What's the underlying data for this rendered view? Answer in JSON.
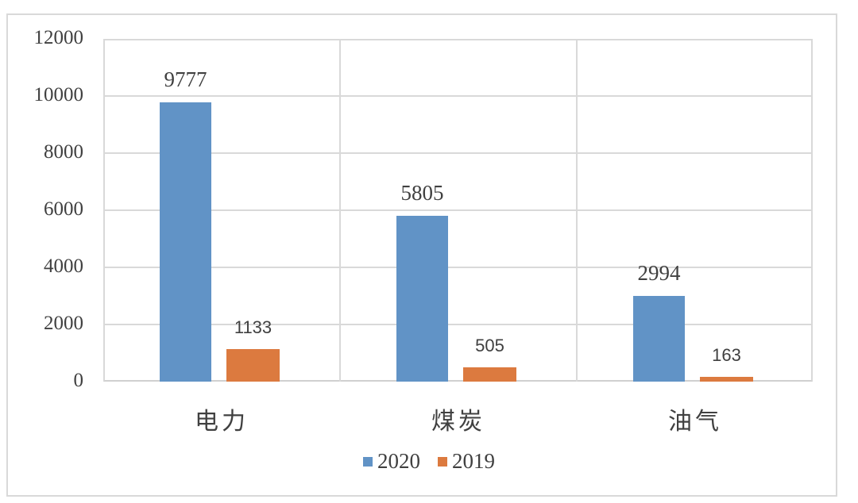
{
  "chart_data": {
    "type": "bar",
    "title": "",
    "xlabel": "",
    "ylabel": "",
    "categories": [
      "电力",
      "煤炭",
      "油气"
    ],
    "series": [
      {
        "name": "2020",
        "values": [
          9777,
          5805,
          2994
        ],
        "color": "#6193c6"
      },
      {
        "name": "2019",
        "values": [
          1133,
          505,
          163
        ],
        "color": "#dc7a3f"
      }
    ],
    "ylim": [
      0,
      12000
    ],
    "yticks": [
      "0",
      "2000",
      "4000",
      "6000",
      "8000",
      "10000",
      "12000"
    ],
    "grid": true,
    "legend_position": "bottom",
    "data_labels": true
  },
  "legend": {
    "items": [
      {
        "label": "2020",
        "color": "#6193c6"
      },
      {
        "label": "2019",
        "color": "#dc7a3f"
      }
    ]
  },
  "labels": {
    "s2020": [
      "9777",
      "5805",
      "2994"
    ],
    "s2019": [
      "1133",
      "505",
      "163"
    ]
  }
}
